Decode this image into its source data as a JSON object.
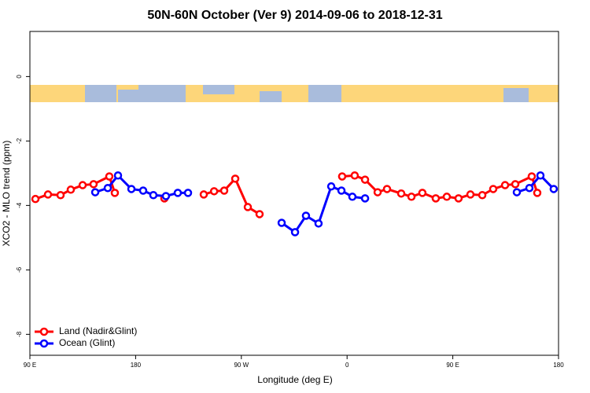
{
  "chart_data": {
    "type": "line",
    "title": "50N-60N October (Ver 9)   2014-09-06 to 2018-12-31",
    "x_label": "Longitude (deg E)",
    "y_label": "XCO2 - MLO trend (ppm)",
    "xlim": [
      90,
      540
    ],
    "xticks": [
      {
        "value": 90,
        "label": "90 E"
      },
      {
        "value": 180,
        "label": "180"
      },
      {
        "value": 270,
        "label": "90 W"
      },
      {
        "value": 360,
        "label": "0"
      },
      {
        "value": 450,
        "label": "90 E"
      },
      {
        "value": 540,
        "label": "180"
      }
    ],
    "ylim": [
      -8.65,
      1.4
    ],
    "yticks": [
      0,
      -2,
      -4,
      -6,
      -8
    ],
    "legend": "bottomleft",
    "series": [
      {
        "name": "Land (Nadir&Glint)",
        "color": "#ff0000",
        "x": [
          94.7,
          105.4,
          116.1,
          124.8,
          134.9,
          144.2,
          157.6,
          162.3,
          null,
          204.5,
          null,
          238.0,
          246.8,
          255.4,
          264.8,
          275.5,
          285.5,
          null,
          355.8,
          366.5,
          375.3,
          386.0,
          394.0,
          406.1,
          414.8,
          424.1,
          435.5,
          444.9,
          454.9,
          465.0,
          475.1,
          484.4,
          494.5,
          503.2,
          517.2,
          521.9
        ],
        "values": [
          -3.8,
          -3.66,
          -3.68,
          -3.51,
          -3.37,
          -3.34,
          -3.1,
          -3.61,
          null,
          -3.78,
          null,
          -3.66,
          -3.56,
          -3.54,
          -3.17,
          -4.05,
          -4.27,
          null,
          -3.1,
          -3.07,
          -3.2,
          -3.59,
          -3.49,
          -3.63,
          -3.73,
          -3.61,
          -3.78,
          -3.73,
          -3.78,
          -3.66,
          -3.68,
          -3.49,
          -3.37,
          -3.34,
          -3.1,
          -3.61
        ]
      },
      {
        "name": "Ocean (Glint)",
        "color": "#0000ff",
        "x": [
          145.6,
          156.3,
          165.0,
          176.4,
          186.4,
          195.1,
          205.8,
          215.9,
          224.6,
          null,
          304.3,
          315.7,
          325.0,
          335.7,
          346.5,
          355.2,
          364.5,
          375.3,
          null,
          504.5,
          515.2,
          524.6,
          535.9
        ],
        "values": [
          -3.59,
          -3.46,
          -3.07,
          -3.49,
          -3.54,
          -3.68,
          -3.71,
          -3.61,
          -3.61,
          null,
          -4.54,
          -4.83,
          -4.32,
          -4.56,
          -3.41,
          -3.54,
          -3.73,
          -3.78,
          null,
          -3.59,
          -3.46,
          -3.07,
          -3.49
        ]
      }
    ]
  }
}
